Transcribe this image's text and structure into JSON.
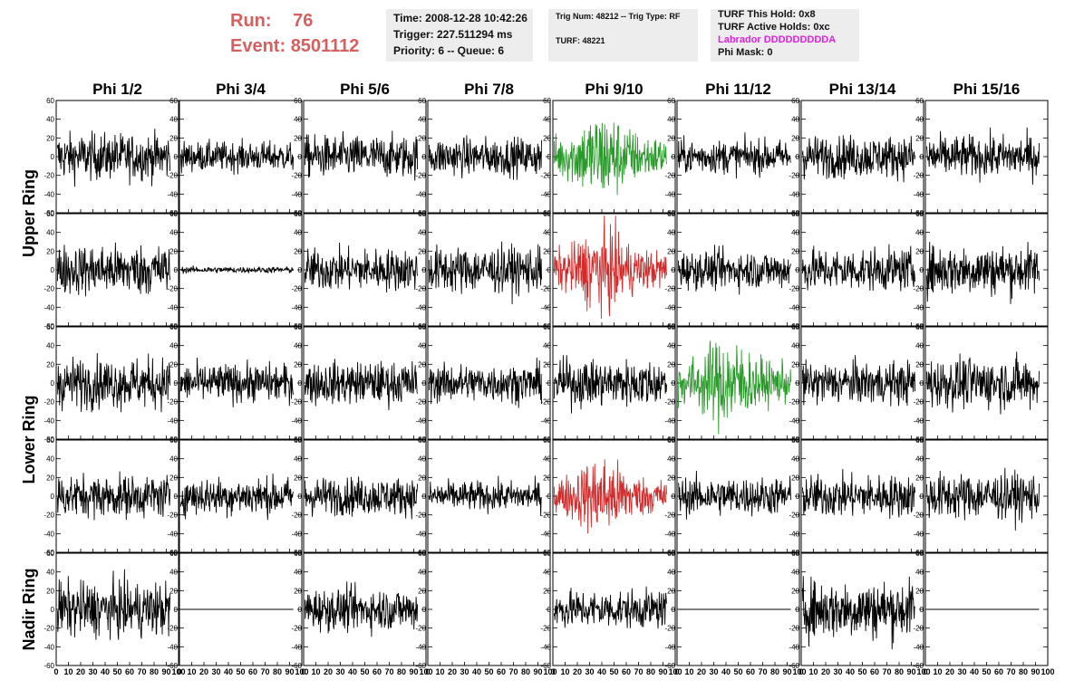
{
  "header": {
    "run_label": "Run:",
    "run_value": "76",
    "event_label": "Event:",
    "event_value": "8501112",
    "time_info": [
      "Time: 2008-12-28 10:42:26",
      "Trigger: 227.511294 ms",
      "Priority: 6 -- Queue: 6"
    ],
    "trig_info": [
      "Trig Num: 48212 -- Trig Type: RF",
      "TURF: 48221"
    ],
    "turf_info": [
      "TURF This Hold: 0x8",
      "TURF Active Holds: 0xc",
      "Labrador DDDDDDDDDA",
      "Phi Mask: 0"
    ],
    "labrador_color": "#e020e0",
    "run_color": "#d46060"
  },
  "chart_data": {
    "type": "line",
    "columns": [
      "Phi 1/2",
      "Phi 3/4",
      "Phi 5/6",
      "Phi 7/8",
      "Phi 9/10",
      "Phi 11/12",
      "Phi 13/14",
      "Phi 15/16"
    ],
    "ring_labels": [
      "Upper Ring",
      "Lower Ring",
      "Nadir Ring"
    ],
    "rows_per_ring": [
      2,
      2,
      1
    ],
    "xlim": [
      0,
      100
    ],
    "ylim": [
      -60,
      60
    ],
    "x_ticks": [
      0,
      10,
      20,
      30,
      40,
      50,
      60,
      70,
      80,
      90,
      100
    ],
    "y_ticks": [
      -60,
      -40,
      -20,
      0,
      20,
      40,
      60
    ],
    "colors": {
      "default": "#000000",
      "green": "#2a9a2a",
      "red": "#d42a2a"
    },
    "panels": [
      [
        {
          "amp": 22,
          "color": "default"
        },
        {
          "amp": 14,
          "color": "default"
        },
        {
          "amp": 20,
          "color": "default"
        },
        {
          "amp": 18,
          "color": "default"
        },
        {
          "amp": 34,
          "color": "green"
        },
        {
          "amp": 16,
          "color": "default"
        },
        {
          "amp": 20,
          "color": "default"
        },
        {
          "amp": 20,
          "color": "default"
        }
      ],
      [
        {
          "amp": 24,
          "color": "default"
        },
        {
          "amp": 3,
          "color": "default"
        },
        {
          "amp": 20,
          "color": "default"
        },
        {
          "amp": 22,
          "color": "default"
        },
        {
          "amp": 32,
          "color": "red"
        },
        {
          "amp": 18,
          "color": "default"
        },
        {
          "amp": 20,
          "color": "default"
        },
        {
          "amp": 24,
          "color": "default"
        }
      ],
      [
        {
          "amp": 24,
          "color": "default"
        },
        {
          "amp": 18,
          "color": "default"
        },
        {
          "amp": 20,
          "color": "default"
        },
        {
          "amp": 18,
          "color": "default"
        },
        {
          "amp": 22,
          "color": "default"
        },
        {
          "amp": 34,
          "color": "green"
        },
        {
          "amp": 20,
          "color": "default"
        },
        {
          "amp": 24,
          "color": "default"
        }
      ],
      [
        {
          "amp": 20,
          "color": "default"
        },
        {
          "amp": 18,
          "color": "default"
        },
        {
          "amp": 18,
          "color": "default"
        },
        {
          "amp": 14,
          "color": "default"
        },
        {
          "amp": 30,
          "color": "red"
        },
        {
          "amp": 18,
          "color": "default"
        },
        {
          "amp": 20,
          "color": "default"
        },
        {
          "amp": 22,
          "color": "default"
        }
      ],
      [
        {
          "amp": 26,
          "color": "default"
        },
        {
          "amp": 0,
          "color": "default"
        },
        {
          "amp": 20,
          "color": "default"
        },
        {
          "amp": null,
          "color": "default"
        },
        {
          "amp": 18,
          "color": "default"
        },
        {
          "amp": 0,
          "color": "default"
        },
        {
          "amp": 28,
          "color": "default"
        },
        {
          "amp": 0,
          "color": "default"
        }
      ]
    ]
  }
}
